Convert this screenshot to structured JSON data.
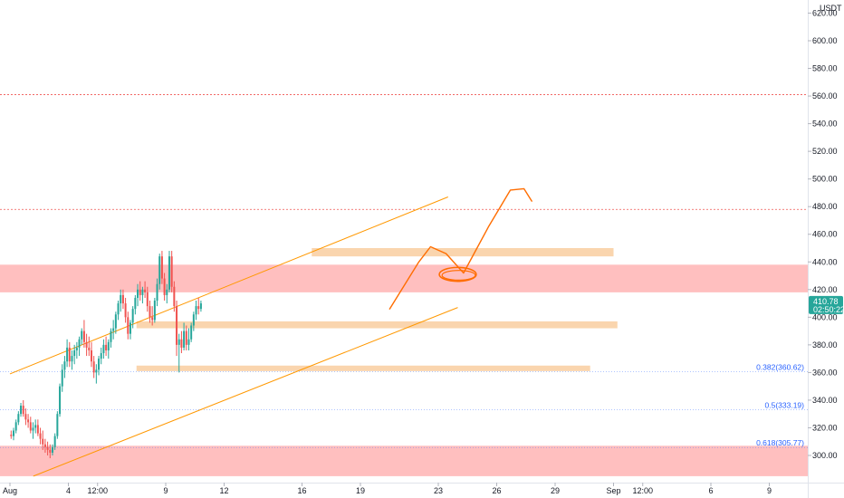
{
  "chart_data": {
    "type": "candlestick",
    "y_unit": "USDT",
    "ylim": [
      290,
      622
    ],
    "y_ticks": [
      300,
      320,
      340,
      360,
      380,
      400,
      420,
      440,
      460,
      480,
      500,
      520,
      540,
      560,
      580,
      600,
      620
    ],
    "x_ticks": [
      {
        "label": "Aug",
        "day": 0
      },
      {
        "label": "4",
        "day": 3
      },
      {
        "label": "12:00",
        "day": 4.5
      },
      {
        "label": "9",
        "day": 8
      },
      {
        "label": "12",
        "day": 11
      },
      {
        "label": "16",
        "day": 15
      },
      {
        "label": "19",
        "day": 18
      },
      {
        "label": "23",
        "day": 22
      },
      {
        "label": "26",
        "day": 25
      },
      {
        "label": "29",
        "day": 28
      },
      {
        "label": "Sep",
        "day": 31
      },
      {
        "label": "12:00",
        "day": 32.5
      },
      {
        "label": "6",
        "day": 36
      },
      {
        "label": "9",
        "day": 39
      }
    ],
    "current_price": {
      "value": "410.78",
      "countdown": "02:50:22",
      "color": "#26a69a"
    },
    "candles": [
      [
        315,
        318,
        312,
        314
      ],
      [
        314,
        320,
        311,
        318
      ],
      [
        318,
        326,
        316,
        324
      ],
      [
        324,
        332,
        322,
        330
      ],
      [
        330,
        338,
        328,
        336
      ],
      [
        336,
        340,
        328,
        330
      ],
      [
        330,
        334,
        322,
        326
      ],
      [
        326,
        330,
        320,
        324
      ],
      [
        324,
        328,
        316,
        318
      ],
      [
        318,
        324,
        312,
        320
      ],
      [
        320,
        326,
        316,
        322
      ],
      [
        322,
        326,
        314,
        316
      ],
      [
        316,
        320,
        308,
        312
      ],
      [
        312,
        318,
        304,
        308
      ],
      [
        308,
        312,
        302,
        306
      ],
      [
        306,
        310,
        300,
        304
      ],
      [
        304,
        308,
        298,
        302
      ],
      [
        302,
        308,
        300,
        306
      ],
      [
        306,
        316,
        304,
        314
      ],
      [
        314,
        332,
        312,
        330
      ],
      [
        330,
        352,
        328,
        350
      ],
      [
        350,
        366,
        346,
        362
      ],
      [
        362,
        372,
        356,
        368
      ],
      [
        368,
        384,
        364,
        378
      ],
      [
        378,
        382,
        364,
        368
      ],
      [
        368,
        376,
        362,
        372
      ],
      [
        372,
        380,
        366,
        376
      ],
      [
        376,
        382,
        370,
        378
      ],
      [
        378,
        386,
        372,
        384
      ],
      [
        384,
        392,
        380,
        390
      ],
      [
        390,
        398,
        378,
        382
      ],
      [
        382,
        388,
        372,
        378
      ],
      [
        378,
        386,
        372,
        376
      ],
      [
        376,
        382,
        364,
        368
      ],
      [
        368,
        372,
        356,
        360
      ],
      [
        360,
        366,
        352,
        362
      ],
      [
        362,
        372,
        358,
        370
      ],
      [
        370,
        378,
        366,
        374
      ],
      [
        374,
        384,
        370,
        380
      ],
      [
        380,
        386,
        372,
        376
      ],
      [
        376,
        384,
        370,
        382
      ],
      [
        382,
        392,
        378,
        390
      ],
      [
        390,
        398,
        384,
        392
      ],
      [
        392,
        404,
        388,
        402
      ],
      [
        402,
        412,
        398,
        410
      ],
      [
        410,
        420,
        404,
        416
      ],
      [
        416,
        420,
        406,
        410
      ],
      [
        410,
        414,
        396,
        400
      ],
      [
        400,
        404,
        384,
        388
      ],
      [
        388,
        398,
        384,
        396
      ],
      [
        396,
        408,
        392,
        406
      ],
      [
        406,
        416,
        402,
        414
      ],
      [
        414,
        424,
        408,
        420
      ],
      [
        420,
        426,
        412,
        416
      ],
      [
        416,
        422,
        410,
        420
      ],
      [
        420,
        426,
        414,
        418
      ],
      [
        418,
        422,
        404,
        408
      ],
      [
        408,
        412,
        396,
        400
      ],
      [
        400,
        408,
        394,
        398
      ],
      [
        398,
        414,
        396,
        412
      ],
      [
        412,
        428,
        408,
        424
      ],
      [
        424,
        446,
        420,
        444
      ],
      [
        444,
        448,
        424,
        428
      ],
      [
        428,
        432,
        412,
        416
      ],
      [
        416,
        424,
        410,
        420
      ],
      [
        420,
        448,
        418,
        444
      ],
      [
        444,
        448,
        418,
        422
      ],
      [
        422,
        426,
        404,
        408
      ],
      [
        408,
        412,
        372,
        380
      ],
      [
        380,
        388,
        360,
        384
      ],
      [
        384,
        390,
        374,
        378
      ],
      [
        378,
        396,
        376,
        390
      ],
      [
        390,
        394,
        376,
        380
      ],
      [
        380,
        392,
        376,
        384
      ],
      [
        384,
        396,
        382,
        394
      ],
      [
        394,
        404,
        390,
        402
      ],
      [
        402,
        412,
        398,
        408
      ],
      [
        408,
        414,
        402,
        406
      ],
      [
        406,
        412,
        404,
        410
      ]
    ],
    "zones": [
      {
        "price_from": 418,
        "price_to": 438,
        "color": "#ff8a8a",
        "opacity": 0.55,
        "style": "red-band"
      },
      {
        "price_from": 285,
        "price_to": 307,
        "color": "#ff8a8a",
        "opacity": 0.55,
        "style": "red-band"
      },
      {
        "price_from": 444,
        "price_to": 450,
        "day_from": 15.5,
        "day_to": 31,
        "color": "#f6b26b",
        "opacity": 0.55,
        "style": "level-box"
      },
      {
        "price_from": 392,
        "price_to": 397,
        "day_from": 6.5,
        "day_to": 31.2,
        "color": "#f6b26b",
        "opacity": 0.55,
        "style": "level-box"
      },
      {
        "price_from": 361,
        "price_to": 365,
        "day_from": 6.5,
        "day_to": 29.8,
        "color": "#f6b26b",
        "opacity": 0.55,
        "style": "level-box"
      }
    ],
    "horizontal_lines": [
      {
        "price": 561,
        "color": "#ef5350",
        "dash": "2,2"
      },
      {
        "price": 478,
        "color": "#ef5350",
        "dash": "2,2"
      }
    ],
    "channel": {
      "color": "#ff9800",
      "upper": [
        [
          0,
          359
        ],
        [
          22.5,
          487
        ]
      ],
      "lower": [
        [
          1.2,
          285
        ],
        [
          23,
          407
        ]
      ]
    },
    "fib_levels": [
      {
        "label": "0.382(360.62)",
        "price": 360.62,
        "color": "#2962ff"
      },
      {
        "label": "0.5(333.19)",
        "price": 333.19,
        "color": "#2962ff"
      },
      {
        "label": "0.618(305.77)",
        "price": 305.77,
        "color": "#2962ff"
      }
    ],
    "projection": {
      "color": "#ff6d00",
      "path": [
        [
          19.5,
          406
        ],
        [
          21,
          440
        ],
        [
          21.6,
          451
        ],
        [
          22.4,
          446
        ],
        [
          23.3,
          432
        ],
        [
          24.6,
          466
        ],
        [
          25.7,
          492
        ],
        [
          26.4,
          493
        ],
        [
          26.8,
          484
        ]
      ],
      "ellipse": {
        "day": 23,
        "price": 431,
        "rx_days": 0.95,
        "ry_price": 5
      }
    }
  }
}
